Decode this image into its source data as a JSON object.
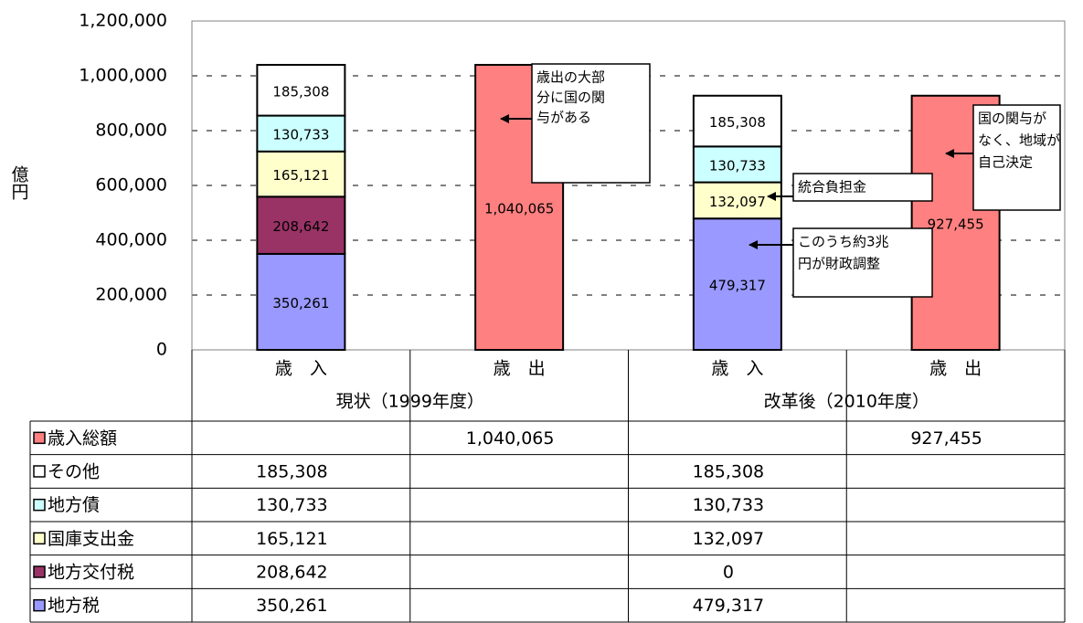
{
  "chart_data": {
    "type": "stacked-bar-table",
    "y_label": "億円",
    "categories": [
      "歳　入",
      "歳　出",
      "歳　入",
      "歳　出"
    ],
    "category_groups": [
      "現状（1999年度）",
      "改革後（2010年度）"
    ],
    "series": [
      {
        "name": "歳入総額",
        "color": "#ff8080",
        "values": [
          null,
          1040065,
          null,
          927455
        ],
        "value_labels": [
          null,
          "1,040,065",
          null,
          "927,455"
        ]
      },
      {
        "name": "その他",
        "color": "#ffffff",
        "values": [
          185308,
          null,
          185308,
          null
        ],
        "value_labels": [
          "185,308",
          null,
          "185,308",
          null
        ]
      },
      {
        "name": "地方債",
        "color": "#ccffff",
        "values": [
          130733,
          null,
          130733,
          null
        ],
        "value_labels": [
          "130,733",
          null,
          "130,733",
          null
        ]
      },
      {
        "name": "国庫支出金",
        "color": "#ffffcc",
        "values": [
          165121,
          null,
          132097,
          null
        ],
        "value_labels": [
          "165,121",
          null,
          "132,097",
          null
        ]
      },
      {
        "name": "地方交付税",
        "color": "#993366",
        "values": [
          208642,
          null,
          0,
          null
        ],
        "value_labels": [
          "208,642",
          null,
          "0",
          null
        ]
      },
      {
        "name": "地方税",
        "color": "#9999ff",
        "values": [
          350261,
          null,
          479317,
          null
        ],
        "value_labels": [
          "350,261",
          null,
          "479,317",
          null
        ]
      }
    ],
    "ylim": [
      0,
      1200000
    ],
    "yticks": [
      0,
      {
        "value": 200000,
        "label": "200,000"
      },
      {
        "value": 400000,
        "label": "400,000"
      },
      {
        "value": 600000,
        "label": "600,000"
      },
      {
        "value": 800000,
        "label": "800,000"
      },
      {
        "value": 1000000,
        "label": "1,000,000"
      },
      {
        "value": 1200000,
        "label": "1,200,000"
      }
    ],
    "grid": true,
    "annotations": [
      [
        "歳出の大部",
        "分に国の関",
        "与がある"
      ],
      [
        "統合負担金"
      ],
      [
        "このうち約3兆",
        "円が財政調整"
      ],
      [
        "国の関与が",
        "なく、地域が",
        "自己決定"
      ]
    ]
  }
}
